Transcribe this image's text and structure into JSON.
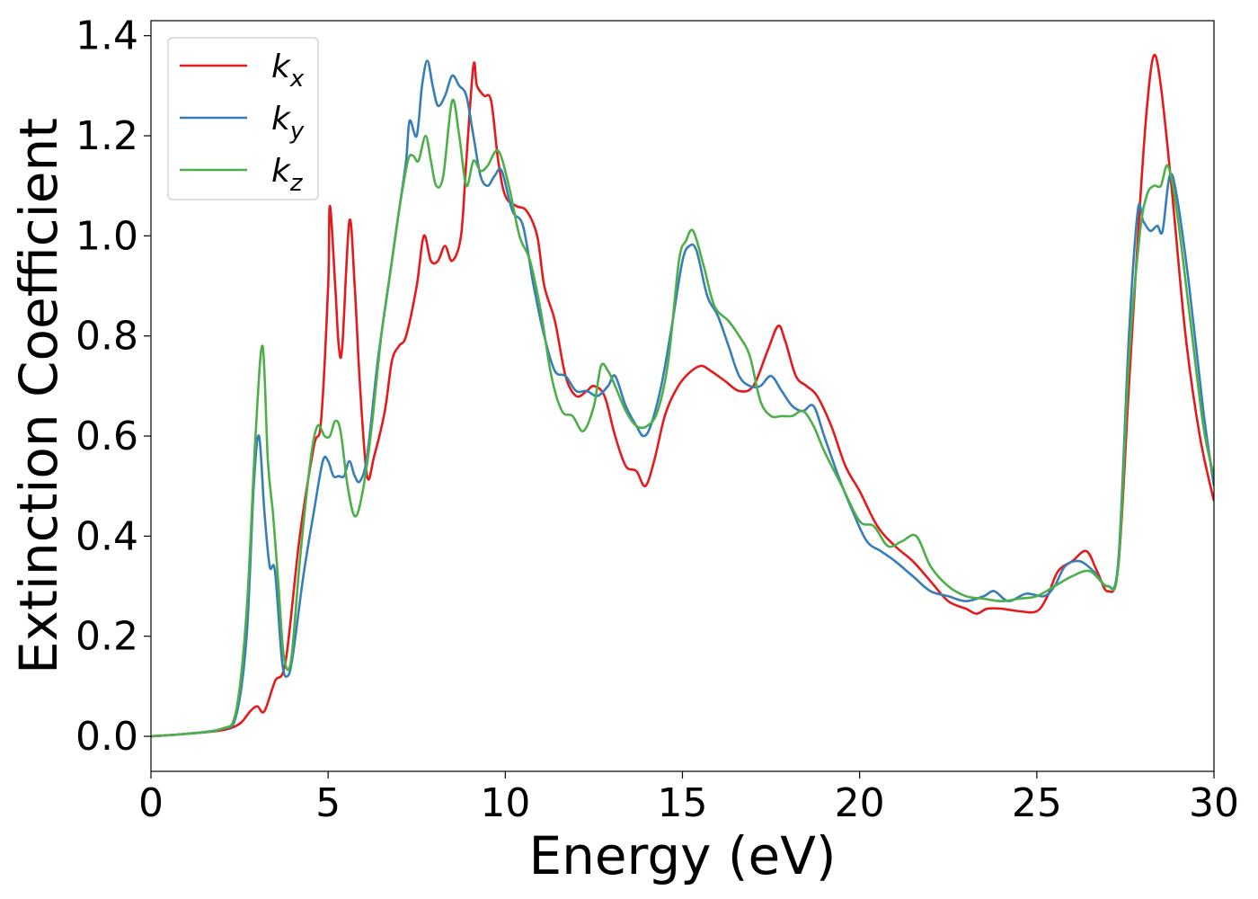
{
  "chart_data": {
    "type": "line",
    "title": "",
    "xlabel": "Energy (eV)",
    "ylabel": "Extinction Coefficient",
    "xlim": [
      0,
      30
    ],
    "ylim": [
      -0.07,
      1.43
    ],
    "xticks": [
      0,
      5,
      10,
      15,
      20,
      25,
      30
    ],
    "xtick_labels": [
      "0",
      "5",
      "10",
      "15",
      "20",
      "25",
      "30"
    ],
    "yticks": [
      0.0,
      0.2,
      0.4,
      0.6,
      0.8,
      1.0,
      1.2,
      1.4
    ],
    "ytick_labels": [
      "0.0",
      "0.2",
      "0.4",
      "0.6",
      "0.8",
      "1.0",
      "1.2",
      "1.4"
    ],
    "grid": false,
    "legend_position": "top-left",
    "series": [
      {
        "name": "k_x",
        "label_base": "k",
        "label_sub": "x",
        "color": "#e41a1c",
        "points": [
          [
            0,
            0
          ],
          [
            1,
            0.005
          ],
          [
            2,
            0.012
          ],
          [
            2.5,
            0.025
          ],
          [
            2.8,
            0.05
          ],
          [
            3.0,
            0.06
          ],
          [
            3.2,
            0.05
          ],
          [
            3.5,
            0.11
          ],
          [
            3.8,
            0.15
          ],
          [
            4.2,
            0.4
          ],
          [
            4.6,
            0.58
          ],
          [
            4.8,
            0.63
          ],
          [
            5.0,
            0.9
          ],
          [
            5.05,
            1.06
          ],
          [
            5.2,
            0.9
          ],
          [
            5.3,
            0.78
          ],
          [
            5.4,
            0.78
          ],
          [
            5.6,
            1.03
          ],
          [
            5.75,
            0.9
          ],
          [
            5.9,
            0.7
          ],
          [
            6.1,
            0.52
          ],
          [
            6.3,
            0.56
          ],
          [
            6.6,
            0.65
          ],
          [
            6.8,
            0.75
          ],
          [
            7.0,
            0.78
          ],
          [
            7.2,
            0.8
          ],
          [
            7.5,
            0.9
          ],
          [
            7.7,
            1.0
          ],
          [
            7.9,
            0.95
          ],
          [
            8.1,
            0.95
          ],
          [
            8.3,
            0.98
          ],
          [
            8.5,
            0.95
          ],
          [
            8.75,
            1.0
          ],
          [
            8.9,
            1.15
          ],
          [
            9.1,
            1.34
          ],
          [
            9.2,
            1.3
          ],
          [
            9.4,
            1.28
          ],
          [
            9.6,
            1.27
          ],
          [
            9.8,
            1.15
          ],
          [
            10.0,
            1.08
          ],
          [
            10.3,
            1.06
          ],
          [
            10.6,
            1.05
          ],
          [
            10.9,
            1.0
          ],
          [
            11.1,
            0.9
          ],
          [
            11.4,
            0.83
          ],
          [
            11.7,
            0.72
          ],
          [
            12.0,
            0.68
          ],
          [
            12.3,
            0.69
          ],
          [
            12.5,
            0.7
          ],
          [
            12.8,
            0.68
          ],
          [
            13.1,
            0.6
          ],
          [
            13.4,
            0.54
          ],
          [
            13.7,
            0.53
          ],
          [
            13.95,
            0.5
          ],
          [
            14.2,
            0.55
          ],
          [
            14.5,
            0.64
          ],
          [
            14.8,
            0.69
          ],
          [
            15.1,
            0.72
          ],
          [
            15.5,
            0.74
          ],
          [
            15.8,
            0.73
          ],
          [
            16.2,
            0.71
          ],
          [
            16.6,
            0.69
          ],
          [
            17.0,
            0.7
          ],
          [
            17.4,
            0.77
          ],
          [
            17.7,
            0.82
          ],
          [
            17.9,
            0.79
          ],
          [
            18.2,
            0.72
          ],
          [
            18.5,
            0.7
          ],
          [
            18.8,
            0.68
          ],
          [
            19.2,
            0.62
          ],
          [
            19.6,
            0.54
          ],
          [
            20.0,
            0.49
          ],
          [
            20.5,
            0.42
          ],
          [
            21.0,
            0.38
          ],
          [
            21.5,
            0.35
          ],
          [
            22.0,
            0.31
          ],
          [
            22.5,
            0.27
          ],
          [
            23.0,
            0.255
          ],
          [
            23.3,
            0.245
          ],
          [
            23.6,
            0.255
          ],
          [
            24.0,
            0.255
          ],
          [
            24.5,
            0.25
          ],
          [
            25.0,
            0.25
          ],
          [
            25.3,
            0.28
          ],
          [
            25.6,
            0.33
          ],
          [
            26.0,
            0.35
          ],
          [
            26.4,
            0.37
          ],
          [
            26.7,
            0.33
          ],
          [
            27.0,
            0.29
          ],
          [
            27.3,
            0.34
          ],
          [
            27.6,
            0.7
          ],
          [
            27.9,
            1.05
          ],
          [
            28.1,
            1.25
          ],
          [
            28.3,
            1.36
          ],
          [
            28.5,
            1.3
          ],
          [
            28.8,
            1.1
          ],
          [
            29.2,
            0.8
          ],
          [
            29.6,
            0.6
          ],
          [
            30,
            0.47
          ]
        ]
      },
      {
        "name": "k_y",
        "label_base": "k",
        "label_sub": "y",
        "color": "#377eb8",
        "points": [
          [
            0,
            0
          ],
          [
            1,
            0.005
          ],
          [
            2,
            0.015
          ],
          [
            2.4,
            0.04
          ],
          [
            2.7,
            0.2
          ],
          [
            2.9,
            0.5
          ],
          [
            3.05,
            0.6
          ],
          [
            3.2,
            0.45
          ],
          [
            3.35,
            0.34
          ],
          [
            3.5,
            0.33
          ],
          [
            3.7,
            0.15
          ],
          [
            3.85,
            0.12
          ],
          [
            4.0,
            0.16
          ],
          [
            4.3,
            0.32
          ],
          [
            4.6,
            0.45
          ],
          [
            4.85,
            0.55
          ],
          [
            5.0,
            0.55
          ],
          [
            5.15,
            0.52
          ],
          [
            5.3,
            0.52
          ],
          [
            5.45,
            0.52
          ],
          [
            5.6,
            0.55
          ],
          [
            5.75,
            0.52
          ],
          [
            5.9,
            0.51
          ],
          [
            6.1,
            0.56
          ],
          [
            6.4,
            0.75
          ],
          [
            6.7,
            0.9
          ],
          [
            7.0,
            1.05
          ],
          [
            7.2,
            1.15
          ],
          [
            7.3,
            1.23
          ],
          [
            7.5,
            1.2
          ],
          [
            7.65,
            1.3
          ],
          [
            7.8,
            1.35
          ],
          [
            7.95,
            1.3
          ],
          [
            8.1,
            1.26
          ],
          [
            8.3,
            1.28
          ],
          [
            8.5,
            1.32
          ],
          [
            8.7,
            1.3
          ],
          [
            8.9,
            1.28
          ],
          [
            9.1,
            1.2
          ],
          [
            9.3,
            1.12
          ],
          [
            9.5,
            1.1
          ],
          [
            9.7,
            1.12
          ],
          [
            9.9,
            1.13
          ],
          [
            10.2,
            1.05
          ],
          [
            10.5,
            1.02
          ],
          [
            10.8,
            0.9
          ],
          [
            11.1,
            0.8
          ],
          [
            11.4,
            0.73
          ],
          [
            11.7,
            0.72
          ],
          [
            12.0,
            0.69
          ],
          [
            12.3,
            0.69
          ],
          [
            12.6,
            0.68
          ],
          [
            12.9,
            0.7
          ],
          [
            13.1,
            0.72
          ],
          [
            13.4,
            0.66
          ],
          [
            13.7,
            0.62
          ],
          [
            13.9,
            0.6
          ],
          [
            14.1,
            0.62
          ],
          [
            14.4,
            0.7
          ],
          [
            14.7,
            0.82
          ],
          [
            15.0,
            0.95
          ],
          [
            15.2,
            0.98
          ],
          [
            15.4,
            0.97
          ],
          [
            15.7,
            0.88
          ],
          [
            16.0,
            0.84
          ],
          [
            16.3,
            0.78
          ],
          [
            16.6,
            0.72
          ],
          [
            16.9,
            0.7
          ],
          [
            17.2,
            0.7
          ],
          [
            17.5,
            0.72
          ],
          [
            17.8,
            0.69
          ],
          [
            18.1,
            0.66
          ],
          [
            18.4,
            0.65
          ],
          [
            18.7,
            0.66
          ],
          [
            19.0,
            0.6
          ],
          [
            19.4,
            0.52
          ],
          [
            19.8,
            0.45
          ],
          [
            20.2,
            0.39
          ],
          [
            20.6,
            0.37
          ],
          [
            21.0,
            0.35
          ],
          [
            21.5,
            0.32
          ],
          [
            22.0,
            0.29
          ],
          [
            22.5,
            0.28
          ],
          [
            23.0,
            0.27
          ],
          [
            23.5,
            0.28
          ],
          [
            23.8,
            0.29
          ],
          [
            24.2,
            0.27
          ],
          [
            24.7,
            0.285
          ],
          [
            25.2,
            0.28
          ],
          [
            25.5,
            0.3
          ],
          [
            25.8,
            0.34
          ],
          [
            26.2,
            0.35
          ],
          [
            26.6,
            0.33
          ],
          [
            27.0,
            0.3
          ],
          [
            27.3,
            0.35
          ],
          [
            27.6,
            0.8
          ],
          [
            27.85,
            1.05
          ],
          [
            28.0,
            1.03
          ],
          [
            28.2,
            1.01
          ],
          [
            28.4,
            1.02
          ],
          [
            28.55,
            1.01
          ],
          [
            28.75,
            1.12
          ],
          [
            28.95,
            1.08
          ],
          [
            29.3,
            0.9
          ],
          [
            29.7,
            0.65
          ],
          [
            30,
            0.5
          ]
        ]
      },
      {
        "name": "k_z",
        "label_base": "k",
        "label_sub": "z",
        "color": "#4daf4a",
        "points": [
          [
            0,
            0
          ],
          [
            1,
            0.005
          ],
          [
            2,
            0.015
          ],
          [
            2.4,
            0.05
          ],
          [
            2.7,
            0.25
          ],
          [
            2.95,
            0.6
          ],
          [
            3.15,
            0.78
          ],
          [
            3.3,
            0.55
          ],
          [
            3.45,
            0.44
          ],
          [
            3.6,
            0.3
          ],
          [
            3.75,
            0.16
          ],
          [
            3.95,
            0.15
          ],
          [
            4.2,
            0.35
          ],
          [
            4.5,
            0.55
          ],
          [
            4.7,
            0.62
          ],
          [
            4.9,
            0.6
          ],
          [
            5.05,
            0.6
          ],
          [
            5.2,
            0.63
          ],
          [
            5.35,
            0.61
          ],
          [
            5.55,
            0.5
          ],
          [
            5.75,
            0.44
          ],
          [
            5.95,
            0.48
          ],
          [
            6.2,
            0.6
          ],
          [
            6.5,
            0.8
          ],
          [
            6.8,
            0.95
          ],
          [
            7.0,
            1.05
          ],
          [
            7.25,
            1.15
          ],
          [
            7.4,
            1.16
          ],
          [
            7.55,
            1.15
          ],
          [
            7.75,
            1.2
          ],
          [
            7.9,
            1.15
          ],
          [
            8.05,
            1.1
          ],
          [
            8.25,
            1.12
          ],
          [
            8.5,
            1.27
          ],
          [
            8.7,
            1.2
          ],
          [
            8.9,
            1.1
          ],
          [
            9.1,
            1.15
          ],
          [
            9.3,
            1.13
          ],
          [
            9.5,
            1.14
          ],
          [
            9.8,
            1.17
          ],
          [
            10.1,
            1.1
          ],
          [
            10.4,
            1.0
          ],
          [
            10.7,
            0.95
          ],
          [
            11.0,
            0.85
          ],
          [
            11.3,
            0.72
          ],
          [
            11.6,
            0.65
          ],
          [
            11.9,
            0.64
          ],
          [
            12.2,
            0.61
          ],
          [
            12.5,
            0.66
          ],
          [
            12.7,
            0.74
          ],
          [
            12.9,
            0.73
          ],
          [
            13.1,
            0.7
          ],
          [
            13.4,
            0.65
          ],
          [
            13.7,
            0.62
          ],
          [
            14.0,
            0.62
          ],
          [
            14.3,
            0.65
          ],
          [
            14.6,
            0.75
          ],
          [
            14.9,
            0.95
          ],
          [
            15.1,
            0.99
          ],
          [
            15.3,
            1.01
          ],
          [
            15.6,
            0.94
          ],
          [
            15.9,
            0.86
          ],
          [
            16.3,
            0.83
          ],
          [
            16.6,
            0.8
          ],
          [
            16.9,
            0.76
          ],
          [
            17.2,
            0.67
          ],
          [
            17.5,
            0.64
          ],
          [
            17.8,
            0.64
          ],
          [
            18.1,
            0.64
          ],
          [
            18.4,
            0.65
          ],
          [
            18.7,
            0.62
          ],
          [
            19.0,
            0.57
          ],
          [
            19.5,
            0.5
          ],
          [
            20.0,
            0.43
          ],
          [
            20.4,
            0.42
          ],
          [
            20.8,
            0.38
          ],
          [
            21.2,
            0.39
          ],
          [
            21.6,
            0.4
          ],
          [
            22.0,
            0.34
          ],
          [
            22.5,
            0.3
          ],
          [
            23.0,
            0.28
          ],
          [
            23.5,
            0.275
          ],
          [
            24.0,
            0.27
          ],
          [
            24.5,
            0.275
          ],
          [
            25.0,
            0.28
          ],
          [
            25.5,
            0.3
          ],
          [
            26.0,
            0.32
          ],
          [
            26.5,
            0.33
          ],
          [
            27.0,
            0.3
          ],
          [
            27.3,
            0.34
          ],
          [
            27.6,
            0.75
          ],
          [
            27.9,
            1.0
          ],
          [
            28.1,
            1.08
          ],
          [
            28.3,
            1.1
          ],
          [
            28.5,
            1.1
          ],
          [
            28.7,
            1.14
          ],
          [
            28.95,
            1.05
          ],
          [
            29.3,
            0.85
          ],
          [
            29.7,
            0.62
          ],
          [
            30,
            0.52
          ]
        ]
      }
    ]
  }
}
